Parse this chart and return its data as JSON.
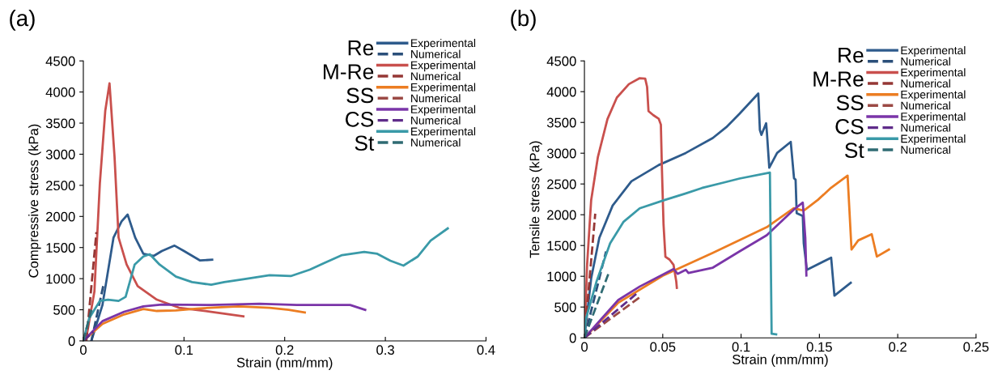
{
  "chart_data": [
    {
      "type": "line",
      "title": "(a)",
      "xlabel": "Strain (mm/mm)",
      "ylabel": "Compressive stress (kPa)",
      "xlim": [
        0,
        0.4
      ],
      "ylim": [
        0,
        4500
      ],
      "xticks": [
        0,
        0.1,
        0.2,
        0.3,
        0.4
      ],
      "yticks": [
        0,
        500,
        1000,
        1500,
        2000,
        2500,
        3000,
        3500,
        4000,
        4500
      ],
      "legend": "top right",
      "annotations": [
        "Re",
        "M-Re",
        "SS",
        "CS",
        "St"
      ],
      "series": [
        {
          "name": "Experimental",
          "color": "#2e5b8c",
          "line_style": "solid",
          "x": [
            0.008,
            0.019,
            0.03,
            0.038,
            0.044,
            0.0515,
            0.0596,
            0.07,
            0.078,
            0.0906,
            0.1,
            0.116,
            0.128
          ],
          "values": [
            0,
            577,
            1661,
            1921,
            2030,
            1661,
            1400,
            1366,
            1444,
            1531,
            1444,
            1292,
            1305
          ]
        },
        {
          "name": "Numerical",
          "color": "#2b4f7a",
          "line_style": "dashed",
          "x": [
            0.008,
            0.02
          ],
          "values": [
            0,
            900
          ]
        },
        {
          "name": "Experimental",
          "color": "#c9504d",
          "line_style": "solid",
          "x": [
            0,
            0.003,
            0.011,
            0.0164,
            0.0218,
            0.026,
            0.031,
            0.035,
            0.043,
            0.054,
            0.073,
            0.095,
            0.127,
            0.159
          ],
          "values": [
            0,
            50,
            794,
            2528,
            3700,
            4140,
            2960,
            1660,
            1227,
            880,
            663,
            533,
            468,
            395
          ]
        },
        {
          "name": "Numerical",
          "color": "#953735",
          "line_style": "dashed",
          "x": [
            0.003,
            0.013
          ],
          "values": [
            0,
            1750
          ]
        },
        {
          "name": "Experimental",
          "color": "#ec7d22",
          "line_style": "solid",
          "x": [
            0,
            0.019,
            0.0405,
            0.0596,
            0.073,
            0.092,
            0.113,
            0.154,
            0.185,
            0.204,
            0.22
          ],
          "values": [
            0,
            273,
            425,
            512,
            481,
            490,
            520,
            555,
            533,
            498,
            455
          ]
        },
        {
          "name": "Numerical",
          "color": "#9b4a45",
          "line_style": "dashed",
          "x": [
            0,
            0.01
          ],
          "values": [
            0,
            150
          ]
        },
        {
          "name": "Experimental",
          "color": "#7a35a8",
          "line_style": "solid",
          "x": [
            0,
            0.019,
            0.0405,
            0.0596,
            0.078,
            0.127,
            0.175,
            0.212,
            0.265,
            0.28
          ],
          "values": [
            0,
            317,
            468,
            555,
            585,
            577,
            598,
            577,
            577,
            498
          ]
        },
        {
          "name": "Numerical",
          "color": "#5f2c8a",
          "line_style": "dashed",
          "x": [
            0,
            0.01
          ],
          "values": [
            0,
            150
          ]
        },
        {
          "name": "Experimental",
          "color": "#3a9aa8",
          "line_style": "solid",
          "x": [
            0,
            0.0057,
            0.0164,
            0.0245,
            0.035,
            0.042,
            0.051,
            0.0596,
            0.066,
            0.0757,
            0.092,
            0.108,
            0.127,
            0.14,
            0.159,
            0.185,
            0.206,
            0.225,
            0.239,
            0.257,
            0.279,
            0.292,
            0.305,
            0.318,
            0.332,
            0.345,
            0.362
          ],
          "values": [
            0,
            360,
            642,
            663,
            642,
            707,
            1227,
            1357,
            1392,
            1227,
            1032,
            945,
            902,
            945,
            989,
            1054,
            1041,
            1145,
            1250,
            1379,
            1431,
            1400,
            1288,
            1210,
            1353,
            1613,
            1808
          ]
        },
        {
          "name": "Numerical",
          "color": "#2f6b73",
          "line_style": "dashed",
          "x": [
            0,
            0.008
          ],
          "values": [
            0,
            500
          ]
        }
      ]
    },
    {
      "type": "line",
      "title": "(b)",
      "xlabel": "Strain (mm/mm)",
      "ylabel": "Tensile stress (kPa)",
      "xlim": [
        0,
        0.25
      ],
      "ylim": [
        0,
        4500
      ],
      "xticks": [
        0,
        0.05,
        0.1,
        0.15,
        0.2,
        0.25
      ],
      "yticks": [
        0,
        500,
        1000,
        1500,
        2000,
        2500,
        3000,
        3500,
        4000,
        4500
      ],
      "legend": "top right",
      "annotations": [
        "Re",
        "M-Re",
        "SS",
        "CS",
        "St"
      ],
      "series": [
        {
          "name": "Experimental",
          "color": "#2e5b8c",
          "line_style": "solid",
          "x": [
            0,
            0.0043,
            0.0095,
            0.018,
            0.03,
            0.0474,
            0.0647,
            0.0819,
            0.0905,
            0.099,
            0.111,
            0.112,
            0.113,
            0.116,
            0.1165,
            0.118,
            0.123,
            0.1317,
            0.1338,
            0.1348,
            0.1355,
            0.1394,
            0.14,
            0.142,
            0.1575,
            0.1596,
            0.17
          ],
          "values": [
            0,
            965,
            1623,
            2149,
            2544,
            2807,
            3004,
            3246,
            3421,
            3640,
            3969,
            3377,
            3298,
            3487,
            3333,
            2763,
            3004,
            3184,
            2592,
            2570,
            2026,
            1978,
            1539,
            1105,
            1303,
            684,
            895
          ]
        },
        {
          "name": "Numerical",
          "color": "#2b4f7a",
          "line_style": "dashed",
          "x": [
            0,
            0.0138
          ],
          "values": [
            0,
            1404
          ]
        },
        {
          "name": "Experimental",
          "color": "#c9504d",
          "line_style": "solid",
          "x": [
            0,
            0.0017,
            0.0043,
            0.0086,
            0.0147,
            0.0207,
            0.0284,
            0.0353,
            0.0388,
            0.04,
            0.0409,
            0.044,
            0.0474,
            0.0488,
            0.0495,
            0.0505,
            0.0517,
            0.0543,
            0.0569,
            0.0586,
            0.059
          ],
          "values": [
            0,
            1184,
            2237,
            2939,
            3553,
            3904,
            4123,
            4219,
            4211,
            4079,
            3684,
            3618,
            3561,
            3465,
            2719,
            1842,
            1316,
            1272,
            1184,
            921,
            811
          ]
        },
        {
          "name": "Numerical",
          "color": "#953735",
          "line_style": "dashed",
          "x": [
            0,
            0.0069
          ],
          "values": [
            0,
            2018
          ]
        },
        {
          "name": "Experimental",
          "color": "#ec7d22",
          "line_style": "solid",
          "x": [
            0,
            0.0216,
            0.05,
            0.082,
            0.1164,
            0.1336,
            0.14,
            0.149,
            0.1575,
            0.168,
            0.1705,
            0.1748,
            0.1834,
            0.1867,
            0.1944
          ],
          "values": [
            0,
            570,
            1009,
            1382,
            1798,
            2105,
            2066,
            2241,
            2439,
            2636,
            1434,
            1583,
            1684,
            1320,
            1434
          ]
        },
        {
          "name": "Numerical",
          "color": "#9b4a45",
          "line_style": "dashed",
          "x": [
            0,
            0.0353
          ],
          "values": [
            0,
            658
          ]
        },
        {
          "name": "Experimental",
          "color": "#7a35a8",
          "line_style": "solid",
          "x": [
            0,
            0.0216,
            0.0353,
            0.0569,
            0.0595,
            0.0647,
            0.0664,
            0.082,
            0.099,
            0.1164,
            0.1336,
            0.1394,
            0.141,
            0.1417
          ],
          "values": [
            0,
            614,
            833,
            1118,
            1040,
            1105,
            1053,
            1140,
            1404,
            1667,
            2083,
            2197,
            1627,
            1013
          ]
        },
        {
          "name": "Numerical",
          "color": "#5f2c8a",
          "line_style": "dashed",
          "x": [
            0,
            0.0336
          ],
          "values": [
            0,
            724
          ]
        },
        {
          "name": "Experimental",
          "color": "#3a9aa8",
          "line_style": "solid",
          "x": [
            0,
            0.0009,
            0.0078,
            0.0164,
            0.025,
            0.0353,
            0.051,
            0.0647,
            0.075,
            0.0888,
            0.099,
            0.1184,
            0.1195,
            0.1224
          ],
          "values": [
            0,
            307,
            921,
            1535,
            1886,
            2105,
            2237,
            2346,
            2434,
            2522,
            2588,
            2684,
            66,
            57
          ]
        },
        {
          "name": "Numerical",
          "color": "#2f6b73",
          "line_style": "dashed",
          "x": [
            0,
            0.0155
          ],
          "values": [
            0,
            1053
          ]
        }
      ]
    }
  ]
}
